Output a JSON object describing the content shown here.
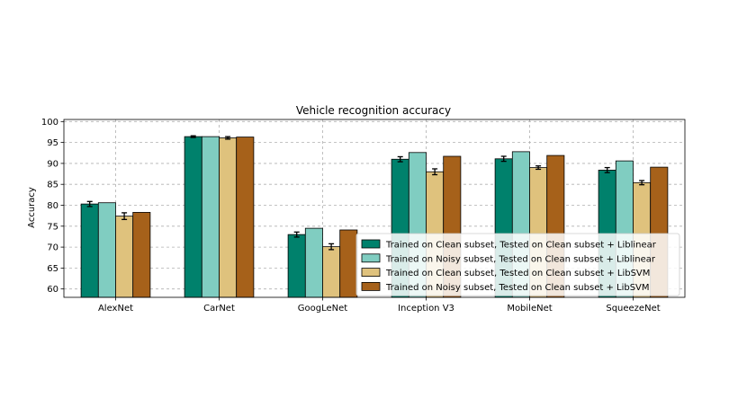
{
  "chart_data": {
    "type": "bar",
    "title": "Vehicle recognition accuracy",
    "xlabel": "",
    "ylabel": "Accuracy",
    "ylim": [
      58,
      100.5
    ],
    "yticks": [
      60,
      65,
      70,
      75,
      80,
      85,
      90,
      95,
      100
    ],
    "grid": true,
    "legend_position": "lower-right",
    "categories": [
      "AlexNet",
      "CarNet",
      "GoogLeNet",
      "Inception V3",
      "MobileNet",
      "SqueezeNet"
    ],
    "series": [
      {
        "name": "Trained on Clean subset, Tested on Clean subset + Liblinear",
        "color": "#00816c",
        "values": [
          80.3,
          96.4,
          73.0,
          91.0,
          91.1,
          88.4
        ],
        "errors": [
          0.6,
          0.2,
          0.6,
          0.6,
          0.6,
          0.6
        ]
      },
      {
        "name": "Trained on Noisy subset, Tested on Clean subset + Liblinear",
        "color": "#80cdc1",
        "values": [
          80.6,
          96.4,
          74.5,
          92.6,
          92.8,
          90.6
        ],
        "errors": null
      },
      {
        "name": "Trained on Clean subset, Tested on Clean subset + LibSVM",
        "color": "#dfc27d",
        "values": [
          77.4,
          96.1,
          70.1,
          88.0,
          89.0,
          85.4
        ],
        "errors": [
          0.8,
          0.3,
          0.7,
          0.7,
          0.4,
          0.5
        ]
      },
      {
        "name": "Trained on Noisy subset, Tested on Clean subset + LibSVM",
        "color": "#a6611a",
        "values": [
          78.3,
          96.3,
          74.1,
          91.7,
          91.9,
          89.1
        ],
        "errors": null
      }
    ]
  }
}
